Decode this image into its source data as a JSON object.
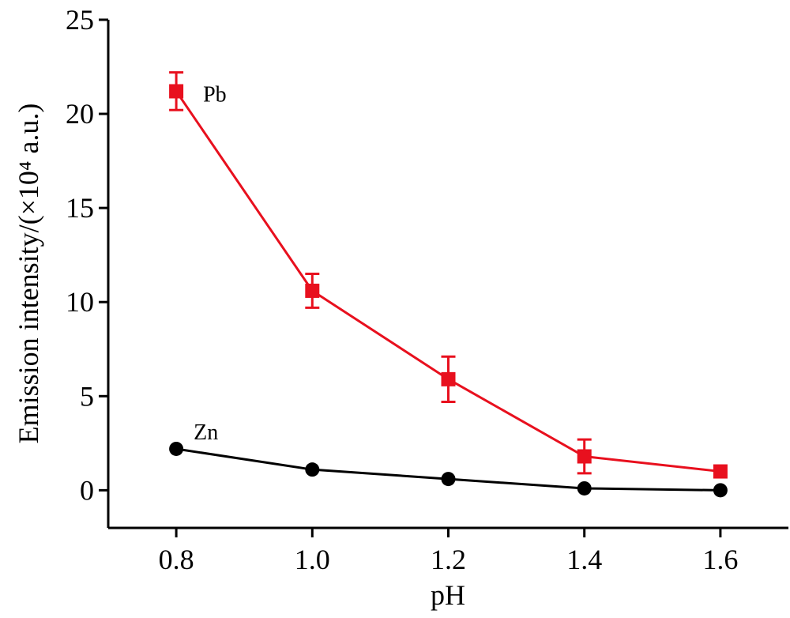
{
  "chart_data": {
    "type": "line",
    "title": "",
    "xlabel": "pH",
    "ylabel": "Emission intensity/(×10⁴ a.u.)",
    "xlim": [
      0.7,
      1.7
    ],
    "ylim": [
      -2,
      25
    ],
    "x_ticks": [
      "0.8",
      "1.0",
      "1.2",
      "1.4",
      "1.6"
    ],
    "y_ticks": [
      "0",
      "5",
      "10",
      "15",
      "20",
      "25"
    ],
    "grid": false,
    "series": [
      {
        "name": "Pb",
        "color": "#e8101e",
        "marker": "square",
        "x": [
          0.8,
          1.0,
          1.2,
          1.4,
          1.6
        ],
        "values": [
          21.2,
          10.6,
          5.9,
          1.8,
          1.0
        ],
        "errors": [
          1.0,
          0.9,
          1.2,
          0.9,
          0
        ]
      },
      {
        "name": "Zn",
        "color": "#000000",
        "marker": "circle",
        "x": [
          0.8,
          1.0,
          1.2,
          1.4,
          1.6
        ],
        "values": [
          2.2,
          1.1,
          0.6,
          0.1,
          0.0
        ],
        "errors": [
          0,
          0,
          0,
          0,
          0
        ]
      }
    ]
  }
}
